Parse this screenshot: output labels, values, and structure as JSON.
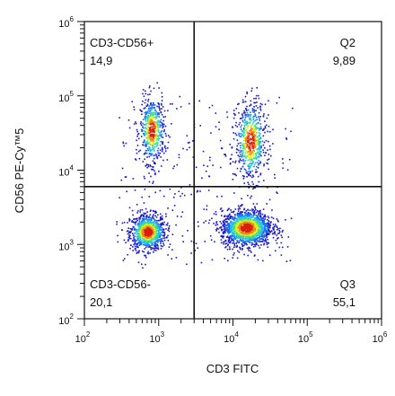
{
  "chart_data": {
    "type": "scatter",
    "title": "",
    "xlabel": "CD3 FITC",
    "ylabel": "CD56 PE-Cy™5",
    "x_scale": "log",
    "y_scale": "log",
    "xlim": [
      100,
      1000000
    ],
    "ylim": [
      100,
      1000000
    ],
    "x_ticks": [
      {
        "base": "10",
        "exp": "2",
        "value": 100
      },
      {
        "base": "10",
        "exp": "3",
        "value": 1000
      },
      {
        "base": "10",
        "exp": "4",
        "value": 10000
      },
      {
        "base": "10",
        "exp": "5",
        "value": 100000
      },
      {
        "base": "10",
        "exp": "6",
        "value": 1000000
      }
    ],
    "y_ticks": [
      {
        "base": "10",
        "exp": "2",
        "value": 100
      },
      {
        "base": "10",
        "exp": "3",
        "value": 1000
      },
      {
        "base": "10",
        "exp": "4",
        "value": 10000
      },
      {
        "base": "10",
        "exp": "5",
        "value": 100000
      },
      {
        "base": "10",
        "exp": "6",
        "value": 1000000
      }
    ],
    "gates": {
      "x": 3000,
      "y": 6000
    },
    "quadrants": [
      {
        "position": "top-left",
        "name": "CD3-CD56+",
        "value": "14,9"
      },
      {
        "position": "top-right",
        "name": "Q2",
        "value": "9,89"
      },
      {
        "position": "bottom-left",
        "name": "CD3-CD56-",
        "value": "20,1"
      },
      {
        "position": "bottom-right",
        "name": "Q3",
        "value": "55,1"
      }
    ],
    "populations": [
      {
        "x": 700,
        "y": 1500,
        "sx": 0.12,
        "sy": 0.12,
        "n": 900
      },
      {
        "x": 800,
        "y": 35000,
        "sx": 0.08,
        "sy": 0.22,
        "n": 550
      },
      {
        "x": 15000,
        "y": 1700,
        "sx": 0.17,
        "sy": 0.12,
        "n": 1500
      },
      {
        "x": 17000,
        "y": 25000,
        "sx": 0.1,
        "sy": 0.26,
        "n": 650
      }
    ],
    "colormap": [
      "#1818c8",
      "#1a6cf0",
      "#22c0e8",
      "#40e080",
      "#d8f020",
      "#f08818",
      "#d82010"
    ]
  }
}
